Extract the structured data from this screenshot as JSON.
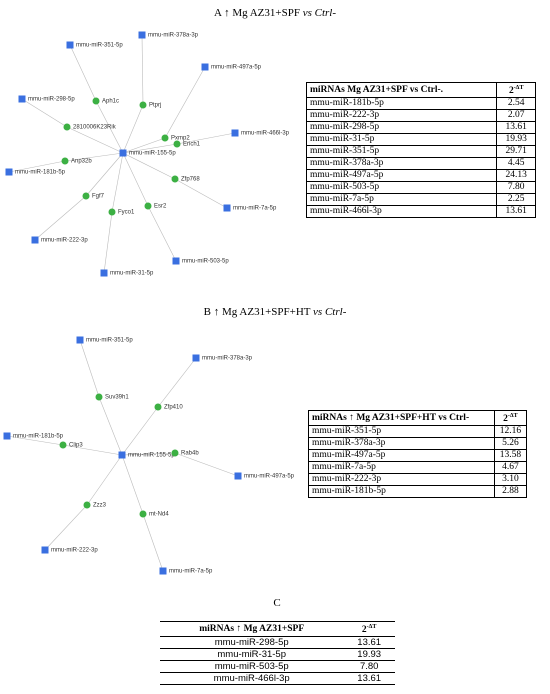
{
  "panels": [
    {
      "letter": "A",
      "title": "↑ Mg AZ31+SPF",
      "title_italic": "vs Ctrl-",
      "network": {
        "nodes": [
          "mmu-miR-378a-3p",
          "mmu-miR-351-5p",
          "mmu-miR-497a-5p",
          "mmu-miR-298-5p",
          "Aph1c",
          "Ptprj",
          "Pxmp2",
          "2810006K23Rik",
          "mmu-miR-466l-3p",
          "Erich1",
          "mmu-miR-155-5p",
          "Anp32b",
          "mmu-miR-181b-5p",
          "Zfp768",
          "Fgf7",
          "Esr2",
          "mmu-miR-7a-5p",
          "Fyco1",
          "mmu-miR-222-3p",
          "mmu-miR-503-5p",
          "mmu-miR-31-5p"
        ]
      },
      "table": {
        "header": [
          "miRNAs Mg AZ31+SPF vs Ctrl-.",
          {
            "base": "2",
            "sup": "-ΔT"
          }
        ],
        "rows": [
          [
            "mmu-miR-181b-5p",
            "2.54"
          ],
          [
            "mmu-miR-222-3p",
            "2.07"
          ],
          [
            "mmu-miR-298-5p",
            "13.61"
          ],
          [
            "mmu-miR-31-5p",
            "19.93"
          ],
          [
            "mmu-miR-351-5p",
            "29.71"
          ],
          [
            "mmu-miR-378a-3p",
            "4.45"
          ],
          [
            "mmu-miR-497a-5p",
            "24.13"
          ],
          [
            "mmu-miR-503-5p",
            "7.80"
          ],
          [
            "mmu-miR-7a-5p",
            "2.25"
          ],
          [
            "mmu-miR-466l-3p",
            "13.61"
          ]
        ]
      }
    },
    {
      "letter": "B",
      "title": "↑ Mg AZ31+SPF+HT",
      "title_italic": "vs Ctrl-",
      "network": {
        "nodes": [
          "mmu-miR-351-5p",
          "mmu-miR-378a-3p",
          "Suv39h1",
          "Zfp410",
          "mmu-miR-181b-5p",
          "Clip3",
          "mmu-miR-155-5p",
          "Rab4b",
          "mmu-miR-497a-5p",
          "Zzz3",
          "mt-Nd4",
          "mmu-miR-222-3p",
          "mmu-miR-7a-5p"
        ]
      },
      "table": {
        "header": [
          "miRNAs ↑ Mg AZ31+SPF+HT vs Ctrl-",
          {
            "base": "2",
            "sup": "-ΔT"
          }
        ],
        "rows": [
          [
            "mmu-miR-351-5p",
            "12.16"
          ],
          [
            "mmu-miR-378a-3p",
            "5.26"
          ],
          [
            "mmu-miR-497a-5p",
            "13.58"
          ],
          [
            "mmu-miR-7a-5p",
            "4.67"
          ],
          [
            "mmu-miR-222-3p",
            "3.10"
          ],
          [
            "mmu-miR-181b-5p",
            "2.88"
          ]
        ]
      }
    },
    {
      "letter": "C",
      "table": {
        "header": [
          "miRNAs ↑ Mg AZ31+SPF",
          {
            "base": "2",
            "sup": "-ΔT"
          }
        ],
        "rows": [
          [
            "mmu-miR-298-5p",
            "13.61"
          ],
          [
            "mmu-miR-31-5p",
            "19.93"
          ],
          [
            "mmu-miR-503-5p",
            "7.80"
          ],
          [
            "mmu-miR-466l-3p",
            "13.61"
          ]
        ]
      }
    }
  ]
}
